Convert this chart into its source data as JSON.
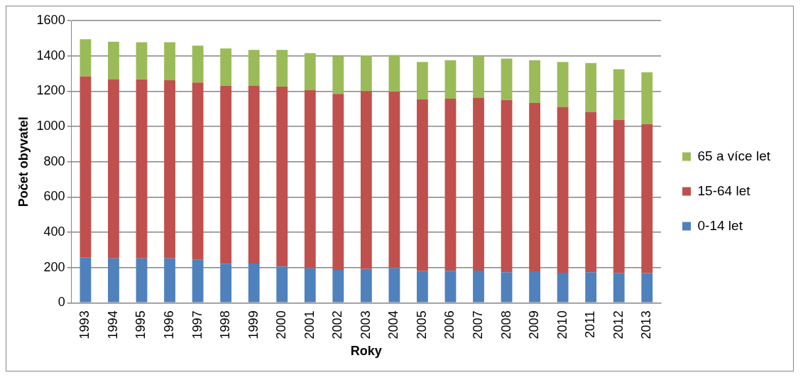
{
  "chart_data": {
    "type": "bar",
    "stacked": true,
    "xlabel": "Roky",
    "ylabel": "Počet obyvatel",
    "categories": [
      "1993",
      "1994",
      "1995",
      "1996",
      "1997",
      "1998",
      "1999",
      "2000",
      "2001",
      "2002",
      "2003",
      "2004",
      "2005",
      "2006",
      "2007",
      "2008",
      "2009",
      "2010",
      "2011",
      "2012",
      "2013"
    ],
    "series": [
      {
        "name": "0-14 let",
        "color": "#4f81bd",
        "values": [
          256,
          252,
          252,
          252,
          244,
          222,
          223,
          206,
          196,
          187,
          192,
          197,
          180,
          182,
          183,
          174,
          179,
          171,
          174,
          170,
          169
        ]
      },
      {
        "name": "15-64 let",
        "color": "#c0504d",
        "values": [
          1028,
          1016,
          1015,
          1010,
          1005,
          1009,
          1009,
          1020,
          1009,
          997,
          1008,
          1000,
          974,
          975,
          980,
          976,
          954,
          940,
          907,
          867,
          843
        ]
      },
      {
        "name": "65 a více let",
        "color": "#9bbb59",
        "values": [
          210,
          212,
          210,
          215,
          209,
          211,
          202,
          208,
          211,
          215,
          203,
          208,
          211,
          219,
          235,
          235,
          243,
          254,
          278,
          287,
          295
        ]
      }
    ],
    "ylim": [
      0,
      1600
    ],
    "yticks": [
      0,
      200,
      400,
      600,
      800,
      1000,
      1200,
      1400,
      1600
    ],
    "grid": "y",
    "legend": "right"
  }
}
